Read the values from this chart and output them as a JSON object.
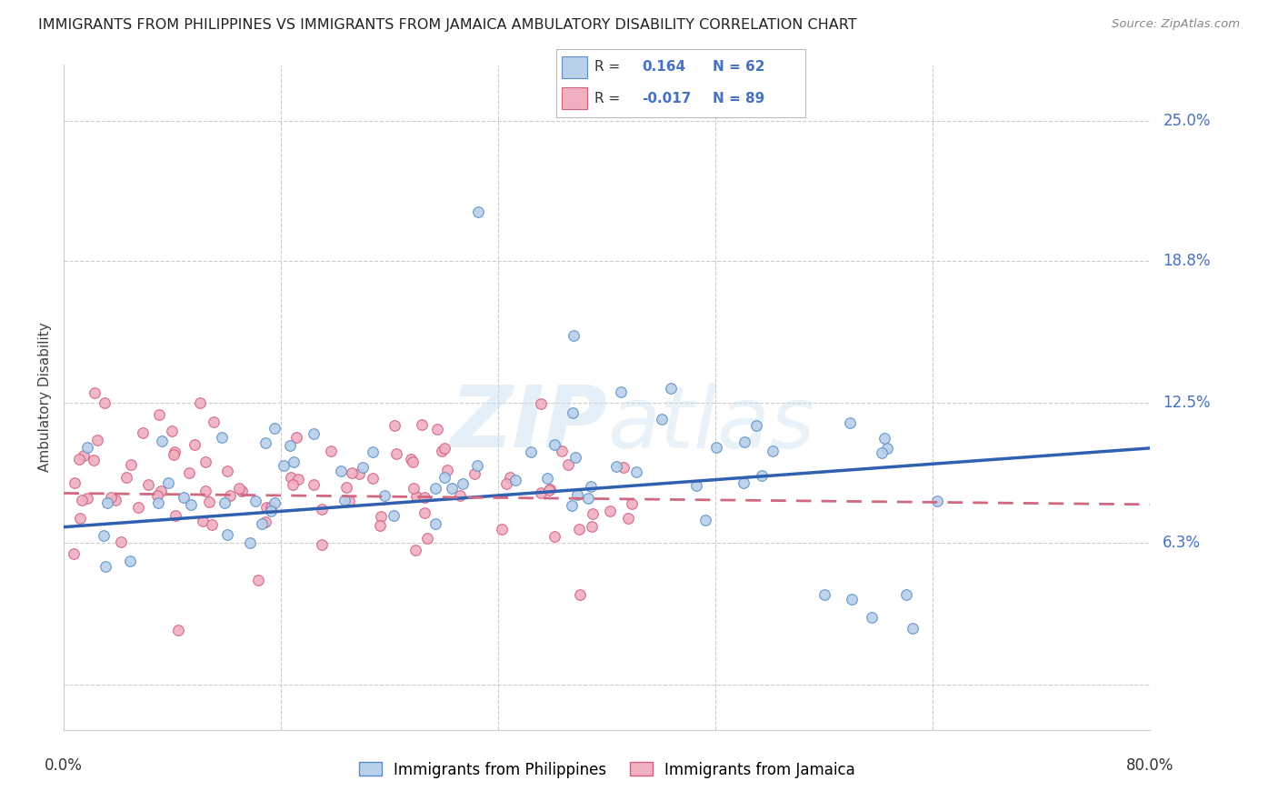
{
  "title": "IMMIGRANTS FROM PHILIPPINES VS IMMIGRANTS FROM JAMAICA AMBULATORY DISABILITY CORRELATION CHART",
  "source": "Source: ZipAtlas.com",
  "ylabel": "Ambulatory Disability",
  "ytick_vals": [
    0.0,
    0.063,
    0.125,
    0.188,
    0.25
  ],
  "ytick_labels": [
    "",
    "6.3%",
    "12.5%",
    "18.8%",
    "25.0%"
  ],
  "r_phil": 0.164,
  "n_phil": 62,
  "r_jam": -0.017,
  "n_jam": 89,
  "color_phil_fill": "#b8d0ea",
  "color_phil_edge": "#5b8ec4",
  "color_jam_fill": "#f0b0c0",
  "color_jam_edge": "#d06080",
  "line_phil_color": "#3060b0",
  "line_jam_color": "#d06880",
  "background": "#ffffff",
  "xlim": [
    0.0,
    0.8
  ],
  "ylim": [
    -0.02,
    0.275
  ],
  "xtick_positions": [
    0.0,
    0.16,
    0.32,
    0.48,
    0.64,
    0.8
  ],
  "legend_label_phil": "Immigrants from Philippines",
  "legend_label_jam": "Immigrants from Jamaica"
}
